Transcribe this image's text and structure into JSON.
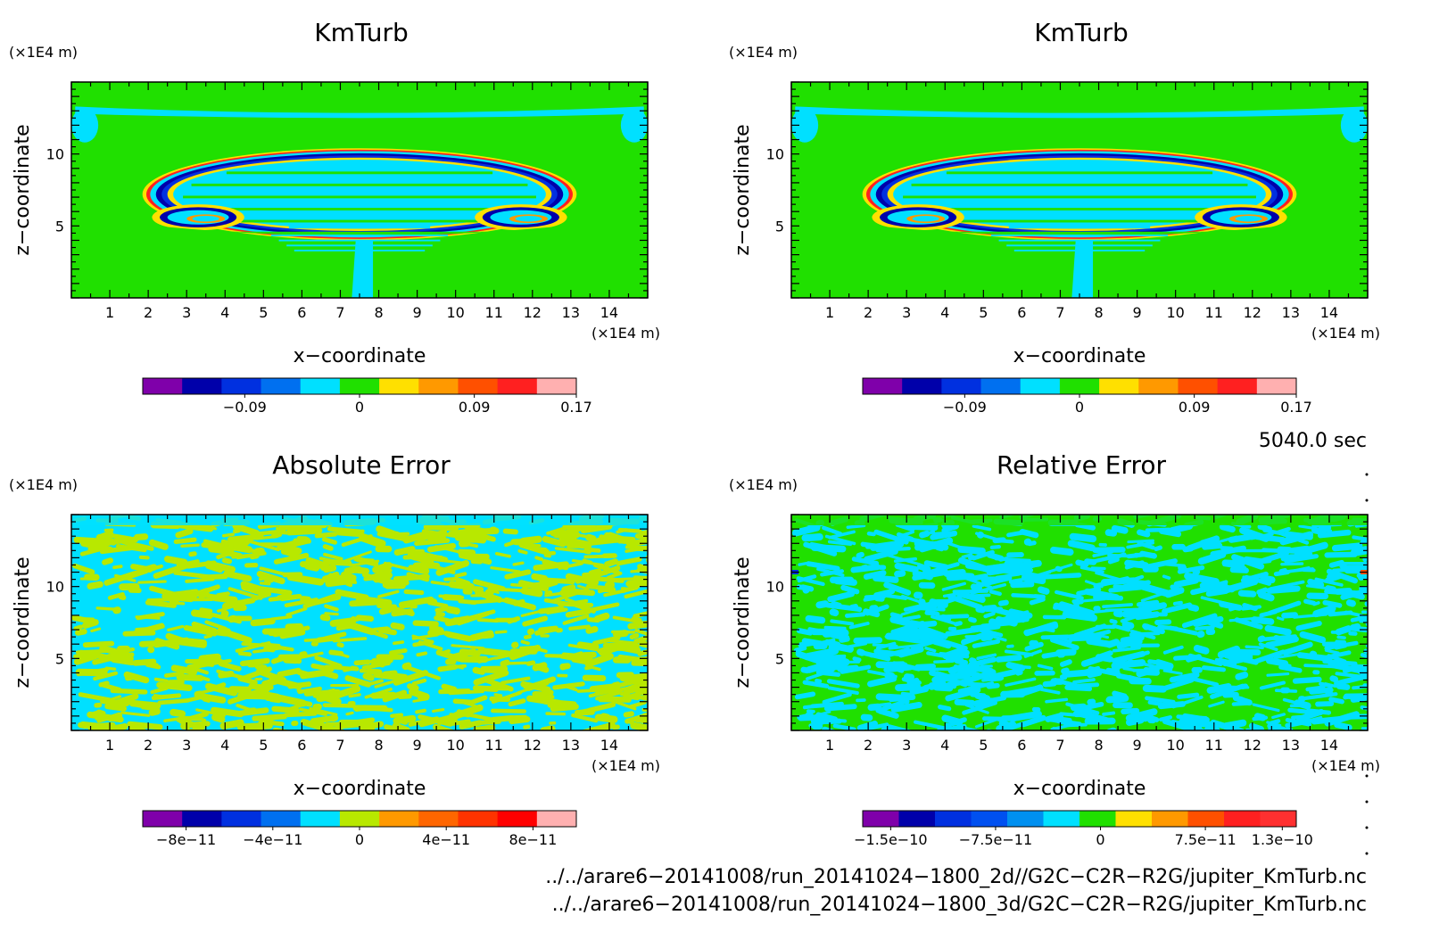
{
  "chart_data": [
    {
      "type": "heatmap",
      "title": "KmTurb",
      "xlabel": "x−coordinate",
      "ylabel": "z−coordinate",
      "x_unit": "(×1E4 m)",
      "y_unit": "(×1E4 m)",
      "x_ticks": [
        "1",
        "2",
        "3",
        "4",
        "5",
        "6",
        "7",
        "8",
        "9",
        "10",
        "11",
        "12",
        "13",
        "14"
      ],
      "y_ticks": [
        "5",
        "10"
      ],
      "xlim": [
        0,
        15
      ],
      "ylim": [
        0,
        15
      ],
      "field": "cloud",
      "colorbar": {
        "colors": [
          "#7f00aa",
          "#0000aa",
          "#0030e0",
          "#0070f0",
          "#00e0ff",
          "#20e000",
          "#ffe000",
          "#ff9900",
          "#ff5000",
          "#ff2020",
          "#ffb0b0"
        ],
        "tick_labels": [
          "−0.09",
          "0",
          "0.09",
          "0.17"
        ],
        "tick_values": [
          -0.09,
          0,
          0.09,
          0.17
        ],
        "range": [
          -0.17,
          0.17
        ]
      }
    },
    {
      "type": "heatmap",
      "title": "KmTurb",
      "xlabel": "x−coordinate",
      "ylabel": "z−coordinate",
      "x_unit": "(×1E4 m)",
      "y_unit": "(×1E4 m)",
      "x_ticks": [
        "1",
        "2",
        "3",
        "4",
        "5",
        "6",
        "7",
        "8",
        "9",
        "10",
        "11",
        "12",
        "13",
        "14"
      ],
      "y_ticks": [
        "5",
        "10"
      ],
      "xlim": [
        0,
        15
      ],
      "ylim": [
        0,
        15
      ],
      "field": "cloud",
      "colorbar": {
        "colors": [
          "#7f00aa",
          "#0000aa",
          "#0030e0",
          "#0070f0",
          "#00e0ff",
          "#20e000",
          "#ffe000",
          "#ff9900",
          "#ff5000",
          "#ff2020",
          "#ffb0b0"
        ],
        "tick_labels": [
          "−0.09",
          "0",
          "0.09",
          "0.17"
        ],
        "tick_values": [
          -0.09,
          0,
          0.09,
          0.17
        ],
        "range": [
          -0.17,
          0.17
        ]
      }
    },
    {
      "type": "heatmap",
      "title": "Absolute Error",
      "xlabel": "x−coordinate",
      "ylabel": "z−coordinate",
      "x_unit": "(×1E4 m)",
      "y_unit": "(×1E4 m)",
      "x_ticks": [
        "1",
        "2",
        "3",
        "4",
        "5",
        "6",
        "7",
        "8",
        "9",
        "10",
        "11",
        "12",
        "13",
        "14"
      ],
      "y_ticks": [
        "5",
        "10"
      ],
      "xlim": [
        0,
        15
      ],
      "ylim": [
        0,
        15
      ],
      "field": "noise-abs",
      "colorbar": {
        "colors": [
          "#7f00aa",
          "#0000aa",
          "#0030e0",
          "#0070f0",
          "#00e0ff",
          "#b8e800",
          "#ff9900",
          "#ff6600",
          "#ff3300",
          "#ff0000",
          "#ffb0b0"
        ],
        "tick_labels": [
          "−8e−11",
          "−4e−11",
          "0",
          "4e−11",
          "8e−11"
        ],
        "tick_values": [
          -8e-11,
          -4e-11,
          0,
          4e-11,
          8e-11
        ],
        "range": [
          -1e-10,
          1e-10
        ]
      }
    },
    {
      "type": "heatmap",
      "title": "Relative Error",
      "xlabel": "x−coordinate",
      "ylabel": "z−coordinate",
      "x_unit": "(×1E4 m)",
      "y_unit": "(×1E4 m)",
      "x_ticks": [
        "1",
        "2",
        "3",
        "4",
        "5",
        "6",
        "7",
        "8",
        "9",
        "10",
        "11",
        "12",
        "13",
        "14"
      ],
      "y_ticks": [
        "5",
        "10"
      ],
      "xlim": [
        0,
        15
      ],
      "ylim": [
        0,
        15
      ],
      "field": "noise-rel",
      "colorbar": {
        "colors": [
          "#7f00aa",
          "#0000aa",
          "#0030e0",
          "#0050f0",
          "#0090f0",
          "#00e0ff",
          "#20e000",
          "#ffe000",
          "#ff9900",
          "#ff5000",
          "#ff2020",
          "#ff3030"
        ],
        "tick_labels": [
          "−1.5e−10",
          "−7.5e−11",
          "0",
          "7.5e−11",
          "1.3e−10"
        ],
        "tick_values": [
          -1.5e-10,
          -7.5e-11,
          0,
          7.5e-11,
          1.3e-10
        ],
        "range": [
          -1.7e-10,
          1.4e-10
        ]
      }
    }
  ],
  "time_label": "5040.0 sec",
  "files": [
    "../../arare6−20141008/run_20141024−1800_2d//G2C−C2R−R2G/jupiter_KmTurb.nc",
    "../../arare6−20141008/run_20141024−1800_3d/G2C−C2R−R2G/jupiter_KmTurb.nc"
  ]
}
